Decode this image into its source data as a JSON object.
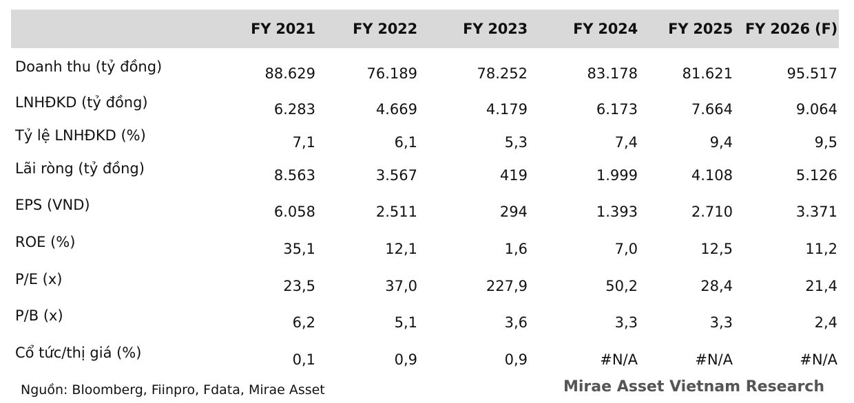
{
  "table": {
    "headers": [
      "",
      "FY 2021",
      "FY 2022",
      "FY 2023",
      "FY 2024",
      "FY 2025",
      "FY 2026 (F)"
    ],
    "rows": [
      {
        "label": "Doanh thu (tỷ đồng)",
        "values": [
          "88.629",
          "76.189",
          "78.252",
          "83.178",
          "81.621",
          "95.517"
        ]
      },
      {
        "label": "LNHĐKD (tỷ đồng)",
        "values": [
          "6.283",
          "4.669",
          "4.179",
          "6.173",
          "7.664",
          "9.064"
        ]
      },
      {
        "label": "Tỷ lệ LNHĐKD (%)",
        "values": [
          "7,1",
          "6,1",
          "5,3",
          "7,4",
          "9,4",
          "9,5"
        ]
      },
      {
        "label": "Lãi ròng (tỷ đồng)",
        "values": [
          "8.563",
          "3.567",
          "419",
          "1.999",
          "4.108",
          "5.126"
        ]
      },
      {
        "label": "EPS (VND)",
        "values": [
          "6.058",
          "2.511",
          "294",
          "1.393",
          "2.710",
          "3.371"
        ]
      },
      {
        "label": "ROE (%)",
        "values": [
          "35,1",
          "12,1",
          "1,6",
          "7,0",
          "12,5",
          "11,2"
        ]
      },
      {
        "label": "P/E (x)",
        "values": [
          "23,5",
          "37,0",
          "227,9",
          "50,2",
          "28,4",
          "21,4"
        ]
      },
      {
        "label": "P/B (x)",
        "values": [
          "6,2",
          "5,1",
          "3,6",
          "3,3",
          "3,3",
          "2,4"
        ]
      },
      {
        "label": "Cổ tức/thị giá (%)",
        "values": [
          "0,1",
          "0,9",
          "0,9",
          "#N/A",
          "#N/A",
          "#N/A"
        ]
      }
    ]
  },
  "footer": {
    "source": "Nguồn: Bloomberg, Fiinpro, Fdata, Mirae Asset",
    "brand": "Mirae Asset Vietnam Research"
  }
}
